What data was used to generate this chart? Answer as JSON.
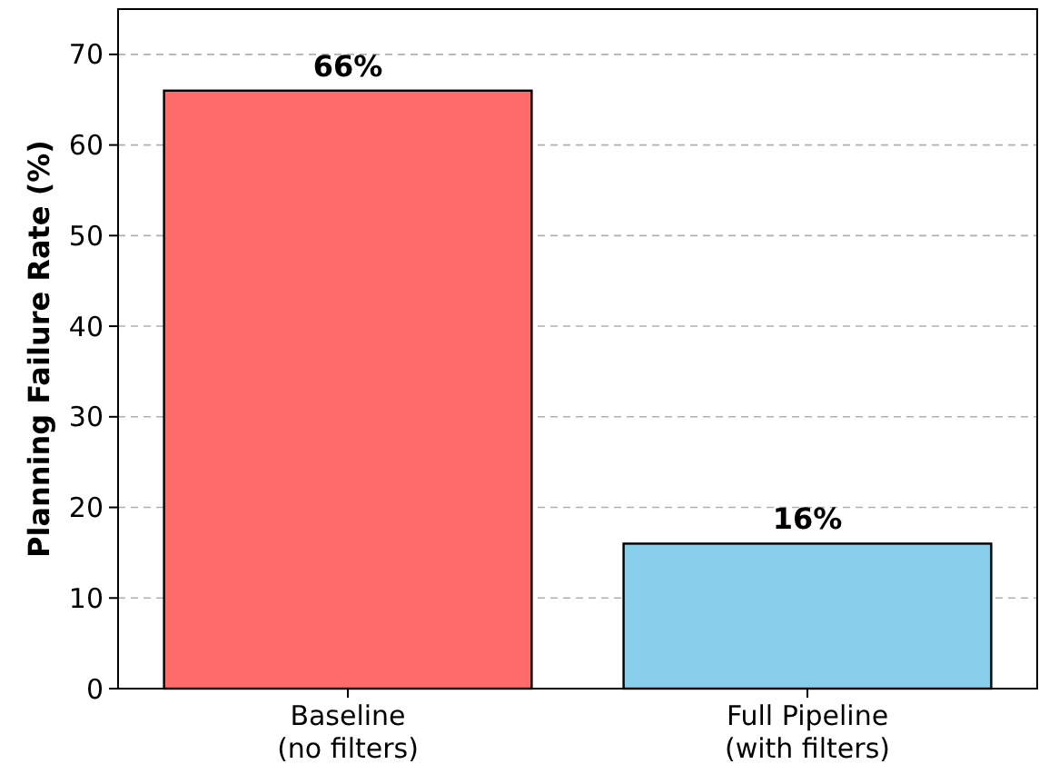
{
  "chart_data": {
    "type": "bar",
    "ylabel": "Planning Failure Rate (%)",
    "categories": [
      "Baseline\n(no filters)",
      "Full Pipeline\n(with filters)"
    ],
    "values": [
      66,
      16
    ],
    "colors": [
      "#ff6b6b",
      "#87ceeb"
    ],
    "value_labels": [
      "66%",
      "16%"
    ],
    "ylim": [
      0,
      75
    ],
    "yticks": [
      0,
      10,
      20,
      30,
      40,
      50,
      60,
      70
    ],
    "grid": "y"
  }
}
